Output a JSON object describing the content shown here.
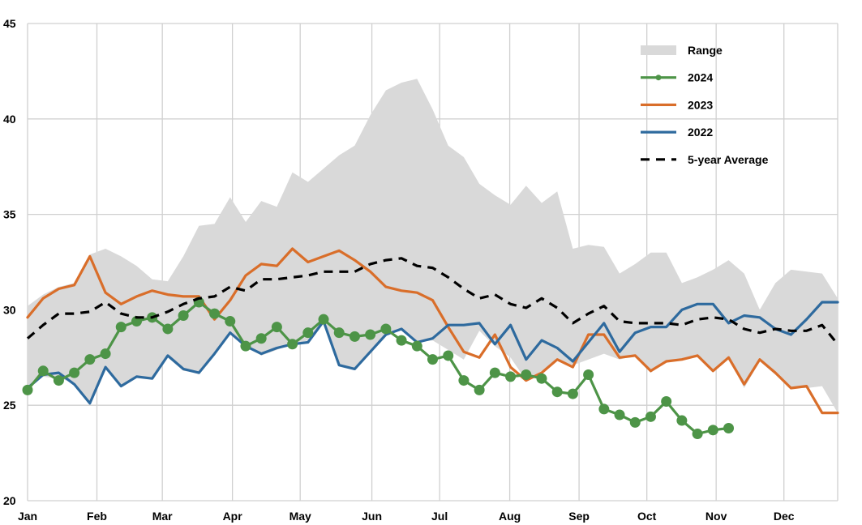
{
  "chart_data": {
    "type": "line",
    "title": "",
    "xlabel": "",
    "ylabel": "",
    "ylim": [
      20,
      45
    ],
    "yticks": [
      20,
      25,
      30,
      35,
      40,
      45
    ],
    "x_unit": "week",
    "xlim": [
      1,
      53
    ],
    "month_ticks": [
      {
        "label": "Jan",
        "week": 1
      },
      {
        "label": "Feb",
        "week": 5.45
      },
      {
        "label": "Mar",
        "week": 9.65
      },
      {
        "label": "Apr",
        "week": 14.15
      },
      {
        "label": "May",
        "week": 18.5
      },
      {
        "label": "Jun",
        "week": 23.1
      },
      {
        "label": "Jul",
        "week": 27.45
      },
      {
        "label": "Aug",
        "week": 31.95
      },
      {
        "label": "Sep",
        "week": 36.4
      },
      {
        "label": "Oct",
        "week": 40.75
      },
      {
        "label": "Nov",
        "week": 45.2
      },
      {
        "label": "Dec",
        "week": 49.55
      }
    ],
    "range": {
      "name": "Range",
      "color": "#d9d9d9",
      "weeks": [
        1,
        2,
        3,
        4,
        5,
        6,
        7,
        8,
        9,
        10,
        11,
        12,
        13,
        14,
        15,
        16,
        17,
        18,
        19,
        20,
        21,
        22,
        23,
        24,
        25,
        26,
        27,
        28,
        29,
        30,
        31,
        32,
        33,
        34,
        35,
        36,
        37,
        38,
        39,
        40,
        41,
        42,
        43,
        44,
        45,
        46,
        47,
        48,
        49,
        50,
        51,
        52,
        53
      ],
      "upper": [
        30.2,
        30.8,
        31.2,
        31.4,
        32.9,
        33.2,
        32.8,
        32.3,
        31.6,
        31.5,
        32.8,
        34.4,
        34.5,
        35.9,
        34.6,
        35.7,
        35.4,
        37.2,
        36.7,
        37.4,
        38.1,
        38.6,
        40.2,
        41.5,
        41.9,
        42.1,
        40.5,
        38.6,
        38.0,
        36.6,
        36.0,
        35.5,
        36.5,
        35.6,
        36.2,
        33.2,
        33.4,
        33.3,
        31.9,
        32.4,
        33.0,
        33.0,
        31.4,
        31.7,
        32.1,
        32.6,
        31.9,
        30.0,
        31.4,
        32.1,
        32.0,
        31.9,
        30.6
      ],
      "lower": [
        25.9,
        26.5,
        26.4,
        26.2,
        25.1,
        26.9,
        26.0,
        26.5,
        26.4,
        27.5,
        26.8,
        26.7,
        27.7,
        28.8,
        28.1,
        27.6,
        27.9,
        28.2,
        28.4,
        29.4,
        27.1,
        26.9,
        27.8,
        28.7,
        29.0,
        28.3,
        28.4,
        27.9,
        27.4,
        28.9,
        28.1,
        27.5,
        26.3,
        26.8,
        27.4,
        27.1,
        27.4,
        27.7,
        27.4,
        27.6,
        26.7,
        27.3,
        27.4,
        27.6,
        26.8,
        27.5,
        25.9,
        27.3,
        26.6,
        25.9,
        25.9,
        26.0,
        24.6
      ]
    },
    "series": [
      {
        "name": "2024",
        "color": "#4d9447",
        "markers": true,
        "weeks": [
          1,
          2,
          3,
          4,
          5,
          6,
          7,
          8,
          9,
          10,
          11,
          12,
          13,
          14,
          15,
          16,
          17,
          18,
          19,
          20,
          21,
          22,
          23,
          24,
          25,
          26,
          27,
          28,
          29,
          30,
          31,
          32,
          33,
          34,
          35,
          36,
          37,
          38,
          39,
          40,
          41,
          42,
          43,
          44,
          45,
          46
        ],
        "values": [
          25.8,
          26.8,
          26.3,
          26.7,
          27.4,
          27.7,
          29.1,
          29.4,
          29.6,
          29.0,
          29.7,
          30.4,
          29.8,
          29.4,
          28.1,
          28.5,
          29.1,
          28.2,
          28.8,
          29.5,
          28.8,
          28.6,
          28.7,
          29.0,
          28.4,
          28.1,
          27.4,
          27.6,
          26.3,
          25.8,
          26.7,
          26.5,
          26.6,
          26.4,
          25.7,
          25.6,
          26.6,
          24.8,
          24.5,
          24.1,
          24.4,
          25.2,
          24.2,
          23.5,
          23.7,
          23.8
        ]
      },
      {
        "name": "2023",
        "color": "#d96e2a",
        "markers": false,
        "weeks": [
          1,
          2,
          3,
          4,
          5,
          6,
          7,
          8,
          9,
          10,
          11,
          12,
          13,
          14,
          15,
          16,
          17,
          18,
          19,
          20,
          21,
          22,
          23,
          24,
          25,
          26,
          27,
          28,
          29,
          30,
          31,
          32,
          33,
          34,
          35,
          36,
          37,
          38,
          39,
          40,
          41,
          42,
          43,
          44,
          45,
          46,
          47,
          48,
          49,
          50,
          51,
          52,
          53
        ],
        "values": [
          29.6,
          30.6,
          31.1,
          31.3,
          32.8,
          30.9,
          30.3,
          30.7,
          31.0,
          30.8,
          30.7,
          30.7,
          29.5,
          30.5,
          31.8,
          32.4,
          32.3,
          33.2,
          32.5,
          32.8,
          33.1,
          32.6,
          32.0,
          31.2,
          31.0,
          30.9,
          30.5,
          29.1,
          27.8,
          27.5,
          28.7,
          27.0,
          26.3,
          26.7,
          27.4,
          27.0,
          28.7,
          28.7,
          27.5,
          27.6,
          26.8,
          27.3,
          27.4,
          27.6,
          26.8,
          27.5,
          26.1,
          27.4,
          26.7,
          25.9,
          26.0,
          24.6,
          24.6
        ]
      },
      {
        "name": "2022",
        "color": "#2e6a9e",
        "markers": false,
        "weeks": [
          1,
          2,
          3,
          4,
          5,
          6,
          7,
          8,
          9,
          10,
          11,
          12,
          13,
          14,
          15,
          16,
          17,
          18,
          19,
          20,
          21,
          22,
          23,
          24,
          25,
          26,
          27,
          28,
          29,
          30,
          31,
          32,
          33,
          34,
          35,
          36,
          37,
          38,
          39,
          40,
          41,
          42,
          43,
          44,
          45,
          46,
          47,
          48,
          49,
          50,
          51,
          52,
          53
        ],
        "values": [
          25.9,
          26.6,
          26.7,
          26.1,
          25.1,
          27.0,
          26.0,
          26.5,
          26.4,
          27.6,
          26.9,
          26.7,
          27.7,
          28.8,
          28.1,
          27.7,
          28.0,
          28.2,
          28.3,
          29.4,
          27.1,
          26.9,
          27.8,
          28.7,
          29.0,
          28.3,
          28.5,
          29.2,
          29.2,
          29.3,
          28.2,
          29.2,
          27.4,
          28.4,
          28.0,
          27.3,
          28.3,
          29.3,
          27.8,
          28.8,
          29.1,
          29.1,
          30.0,
          30.3,
          30.3,
          29.3,
          29.7,
          29.6,
          29.0,
          28.7,
          29.5,
          30.4,
          30.4
        ]
      },
      {
        "name": "5-year Average",
        "color": "#000000",
        "dashed": true,
        "markers": false,
        "weeks": [
          1,
          2,
          3,
          4,
          5,
          6,
          7,
          8,
          9,
          10,
          11,
          12,
          13,
          14,
          15,
          16,
          17,
          18,
          19,
          20,
          21,
          22,
          23,
          24,
          25,
          26,
          27,
          28,
          29,
          30,
          31,
          32,
          33,
          34,
          35,
          36,
          37,
          38,
          39,
          40,
          41,
          42,
          43,
          44,
          45,
          46,
          47,
          48,
          49,
          50,
          51,
          52,
          53
        ],
        "values": [
          28.5,
          29.2,
          29.8,
          29.8,
          29.9,
          30.4,
          29.8,
          29.6,
          29.6,
          29.9,
          30.3,
          30.6,
          30.7,
          31.2,
          31.0,
          31.6,
          31.6,
          31.7,
          31.8,
          32.0,
          32.0,
          32.0,
          32.4,
          32.6,
          32.7,
          32.3,
          32.2,
          31.7,
          31.1,
          30.6,
          30.8,
          30.3,
          30.1,
          30.6,
          30.1,
          29.3,
          29.8,
          30.2,
          29.4,
          29.3,
          29.3,
          29.3,
          29.2,
          29.5,
          29.6,
          29.5,
          29.0,
          28.8,
          29.0,
          28.9,
          28.9,
          29.2,
          28.2
        ]
      }
    ],
    "legend": {
      "position": "top-right",
      "entries": [
        {
          "label": "Range",
          "kind": "area"
        },
        {
          "label": "2024",
          "kind": "line-marker"
        },
        {
          "label": "2023",
          "kind": "line"
        },
        {
          "label": "2022",
          "kind": "line"
        },
        {
          "label": "5-year Average",
          "kind": "dashed"
        }
      ]
    }
  }
}
